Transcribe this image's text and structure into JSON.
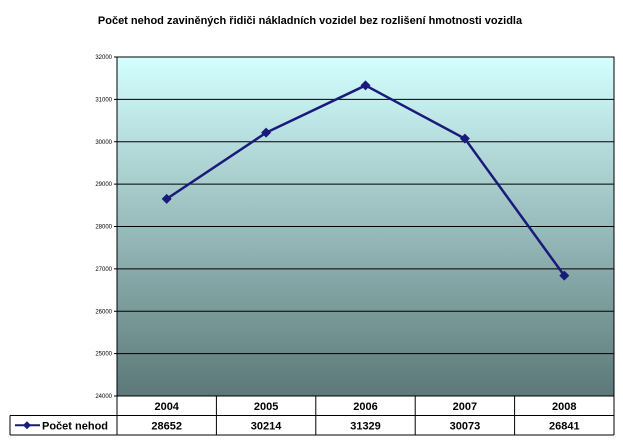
{
  "chart_data": {
    "type": "line",
    "title": "Počet nehod zaviněných řidiči nákladních vozidel bez rozlišení hmotnosti vozidla",
    "categories": [
      "2004",
      "2005",
      "2006",
      "2007",
      "2008"
    ],
    "series": [
      {
        "name": "Počet nehod",
        "values": [
          28652,
          30214,
          31329,
          30073,
          26841
        ]
      }
    ],
    "ylim": [
      24000,
      32000
    ],
    "yticks": [
      24000,
      25000,
      26000,
      27000,
      28000,
      29000,
      30000,
      31000,
      32000
    ],
    "grid": true,
    "legend": "data-table-left",
    "colors": {
      "line": "#1a1a7a",
      "marker": "#1a1a7a",
      "plot_top": "#d4ffff",
      "plot_bottom": "#5c7878",
      "gridline": "#000000"
    }
  }
}
